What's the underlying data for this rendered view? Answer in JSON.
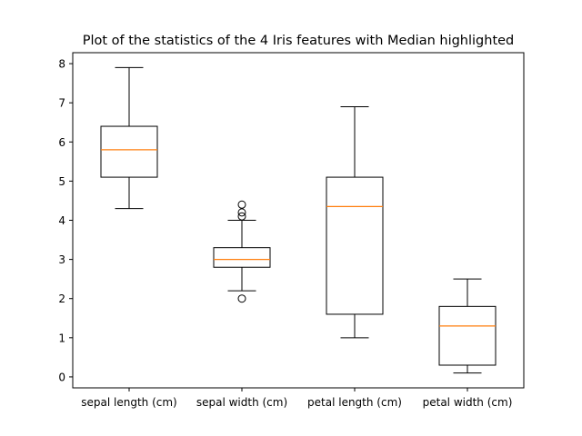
{
  "chart_data": {
    "type": "boxplot",
    "title": "Plot of the statistics of the 4 Iris features with Median highlighted",
    "xlabel": "",
    "ylabel": "",
    "ylim": [
      -0.28,
      8.28
    ],
    "yticks": [
      0,
      1,
      2,
      3,
      4,
      5,
      6,
      7,
      8
    ],
    "grid": false,
    "colors": {
      "box": "#000000",
      "median": "#ff7f0e",
      "background": "#ffffff"
    },
    "categories": [
      "sepal length (cm)",
      "sepal width (cm)",
      "petal length (cm)",
      "petal width (cm)"
    ],
    "boxes": [
      {
        "whisker_low": 4.3,
        "q1": 5.1,
        "median": 5.8,
        "q3": 6.4,
        "whisker_high": 7.9,
        "outliers": []
      },
      {
        "whisker_low": 2.2,
        "q1": 2.8,
        "median": 3.0,
        "q3": 3.3,
        "whisker_high": 4.0,
        "outliers": [
          4.4,
          4.2,
          4.1,
          2.0
        ]
      },
      {
        "whisker_low": 1.0,
        "q1": 1.6,
        "median": 4.35,
        "q3": 5.1,
        "whisker_high": 6.9,
        "outliers": []
      },
      {
        "whisker_low": 0.1,
        "q1": 0.3,
        "median": 1.3,
        "q3": 1.8,
        "whisker_high": 2.5,
        "outliers": []
      }
    ]
  }
}
